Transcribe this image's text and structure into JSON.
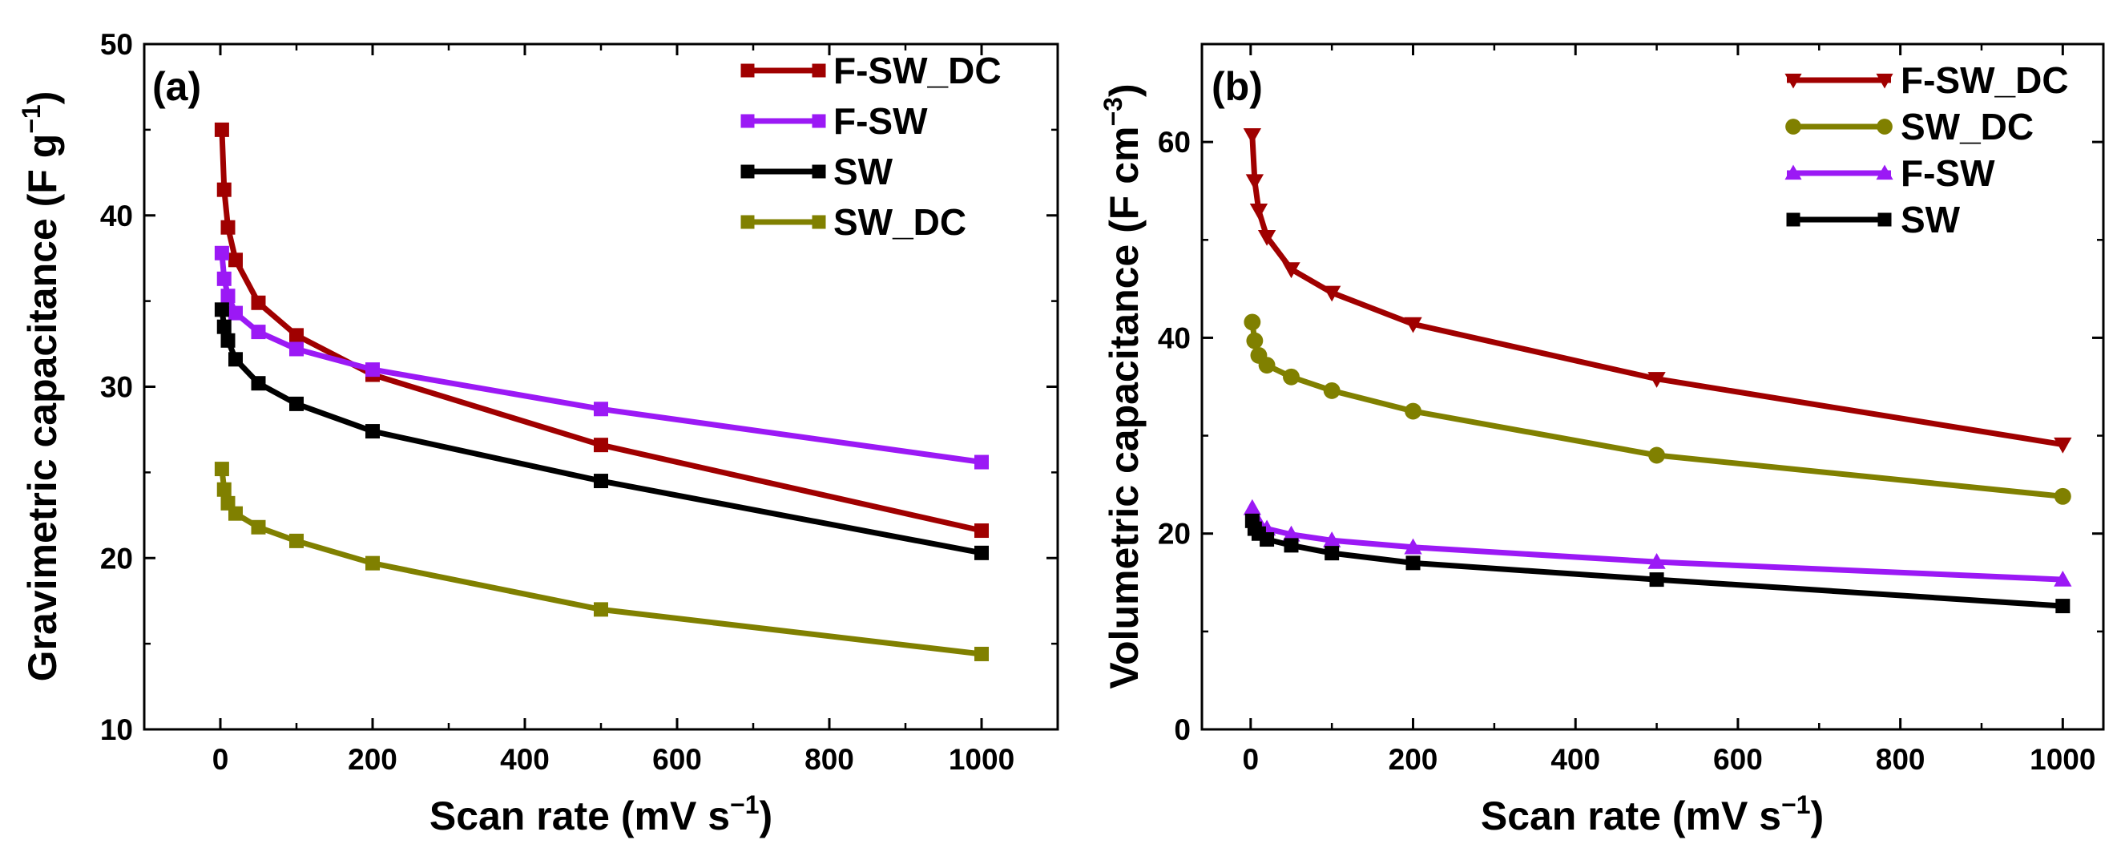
{
  "chart_data": [
    {
      "type": "line",
      "panel_label": "(a)",
      "xlabel": "Scan rate (mV s",
      "xlabel_sup": "−1",
      "xlabel_end": ")",
      "ylabel": "Gravimetric capacitance (F g",
      "ylabel_sup": "−1",
      "ylabel_end": ")",
      "xlim": [
        -100,
        1100
      ],
      "ylim": [
        10,
        50
      ],
      "x_ticks": [
        0,
        200,
        400,
        600,
        800,
        1000
      ],
      "x_tick_labels": [
        "0",
        "200",
        "400",
        "600",
        "800",
        "1000"
      ],
      "y_ticks": [
        10,
        20,
        30,
        40,
        50
      ],
      "y_tick_labels": [
        "10",
        "20",
        "30",
        "40",
        "50"
      ],
      "legend_position": "top-right",
      "x": [
        2,
        5,
        10,
        20,
        50,
        100,
        200,
        500,
        1000
      ],
      "series": [
        {
          "name": "F-SW_DC",
          "color": "#A00000",
          "marker": "square",
          "values": [
            45.0,
            41.5,
            39.3,
            37.4,
            34.9,
            33.0,
            30.7,
            26.6,
            21.6
          ]
        },
        {
          "name": "F-SW",
          "color": "#9B19F5",
          "marker": "square",
          "values": [
            37.8,
            36.3,
            35.3,
            34.3,
            33.2,
            32.2,
            31.0,
            28.7,
            25.6
          ]
        },
        {
          "name": "SW",
          "color": "#000000",
          "marker": "square",
          "values": [
            34.5,
            33.5,
            32.7,
            31.6,
            30.2,
            29.0,
            27.4,
            24.5,
            20.3
          ]
        },
        {
          "name": "SW_DC",
          "color": "#808000",
          "marker": "square",
          "values": [
            25.2,
            24.0,
            23.2,
            22.6,
            21.8,
            21.0,
            19.7,
            17.0,
            14.4
          ]
        }
      ]
    },
    {
      "type": "line",
      "panel_label": "(b)",
      "xlabel": "Scan rate (mV s",
      "xlabel_sup": "−1",
      "xlabel_end": ")",
      "ylabel": "Volumetric capacitance (F cm",
      "ylabel_sup": "−3",
      "ylabel_end": ")",
      "xlim": [
        -60,
        1050
      ],
      "ylim": [
        0,
        70
      ],
      "x_ticks": [
        0,
        200,
        400,
        600,
        800,
        1000
      ],
      "x_tick_labels": [
        "0",
        "200",
        "400",
        "600",
        "800",
        "1000"
      ],
      "y_ticks": [
        0,
        20,
        40,
        60
      ],
      "y_tick_labels": [
        "0",
        "20",
        "40",
        "60"
      ],
      "legend_position": "top-right",
      "x": [
        2,
        5,
        10,
        20,
        50,
        100,
        200,
        500,
        1000
      ],
      "series": [
        {
          "name": "F-SW_DC",
          "color": "#A00000",
          "marker": "triangle-down",
          "values": [
            60.7,
            56.0,
            53.0,
            50.3,
            47.0,
            44.6,
            41.4,
            35.8,
            29.1
          ]
        },
        {
          "name": "SW_DC",
          "color": "#808000",
          "marker": "circle",
          "values": [
            41.6,
            39.7,
            38.2,
            37.2,
            36.0,
            34.6,
            32.5,
            28.0,
            23.8
          ]
        },
        {
          "name": "F-SW",
          "color": "#9B19F5",
          "marker": "triangle-up",
          "values": [
            22.6,
            21.8,
            21.1,
            20.5,
            19.9,
            19.3,
            18.6,
            17.1,
            15.3
          ]
        },
        {
          "name": "SW",
          "color": "#000000",
          "marker": "square",
          "values": [
            21.3,
            20.5,
            20.0,
            19.4,
            18.8,
            18.0,
            17.0,
            15.3,
            12.6
          ]
        }
      ]
    }
  ]
}
